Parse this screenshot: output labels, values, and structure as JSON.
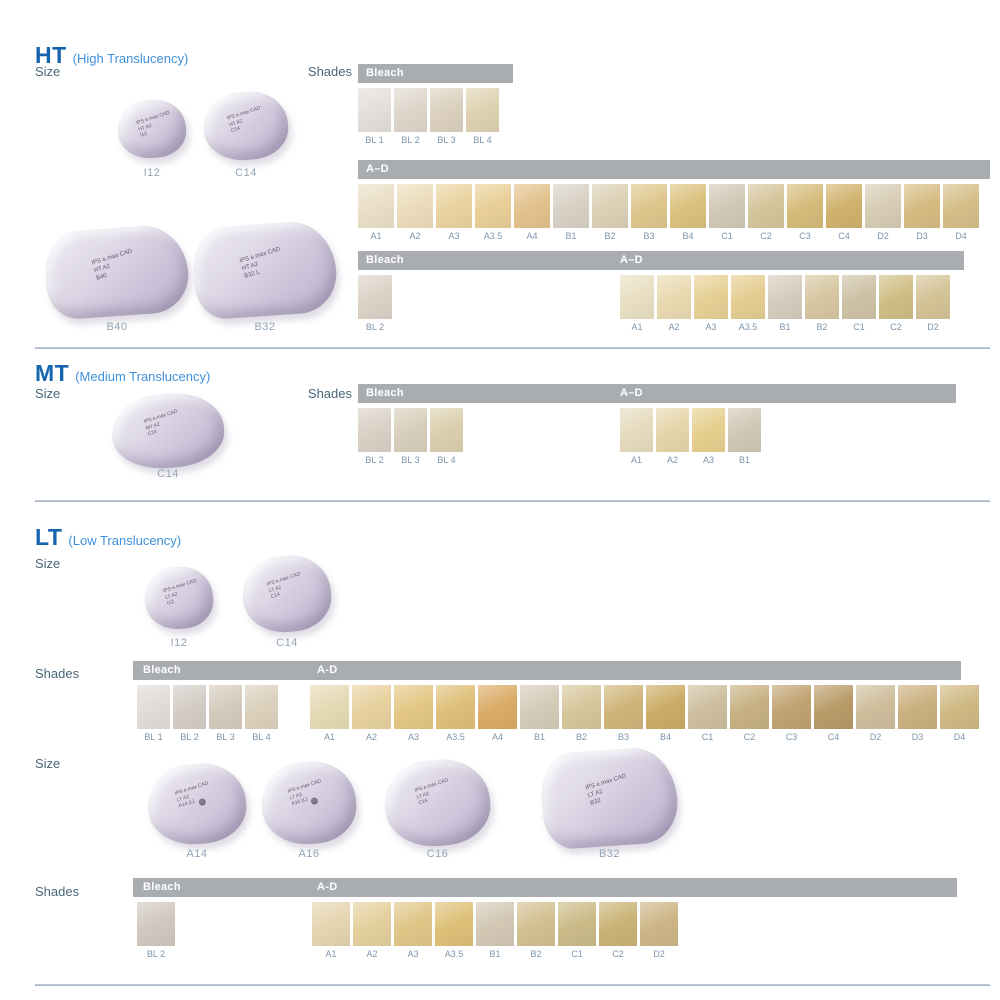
{
  "colors": {
    "header_blue": "#1565AE",
    "subtitle_blue": "#3F90DC",
    "section_label": "#48677A",
    "shade_label": "#7D94AA",
    "bar_gray": "#A9ACB0",
    "bar_text": "#FFFFFF",
    "block_lilac": "#CDC5DA"
  },
  "sections": {
    "ht": {
      "code": "HT",
      "title": "(High Translucency)",
      "size_label": "Size",
      "shades_label": "Shades",
      "blocks": [
        {
          "label": "I12",
          "face": "IPS e.max CAD\nHT A2\nI12"
        },
        {
          "label": "C14",
          "face": "IPS e.max CAD\nHT A2\nC14"
        },
        {
          "label": "B40",
          "face": "IPS e.max CAD\nHT A2\nB40"
        },
        {
          "label": "B32",
          "face": "IPS e.max CAD\nHT A2\nB32 L"
        }
      ],
      "rows": {
        "bleach": {
          "header": "Bleach",
          "swatches": [
            {
              "label": "BL 1",
              "color": "#E4DFDA"
            },
            {
              "label": "BL 2",
              "color": "#DED6CB"
            },
            {
              "label": "BL 3",
              "color": "#DCD1BF"
            },
            {
              "label": "BL 4",
              "color": "#DFD2B2"
            }
          ]
        },
        "ad": {
          "header": "A–D",
          "swatches": [
            {
              "label": "A1",
              "color": "#EADFC6"
            },
            {
              "label": "A2",
              "color": "#EBDDBB"
            },
            {
              "label": "A3",
              "color": "#EAD3A0"
            },
            {
              "label": "A3.5",
              "color": "#E9CF97"
            },
            {
              "label": "A4",
              "color": "#E3C28C"
            },
            {
              "label": "B1",
              "color": "#D8D1C5"
            },
            {
              "label": "B2",
              "color": "#DCD0B5"
            },
            {
              "label": "B3",
              "color": "#DFC68C"
            },
            {
              "label": "B4",
              "color": "#DCC17E"
            },
            {
              "label": "C1",
              "color": "#D2C8B6"
            },
            {
              "label": "C2",
              "color": "#D5C59B"
            },
            {
              "label": "C3",
              "color": "#D6BB7B"
            },
            {
              "label": "C4",
              "color": "#D1B26D"
            },
            {
              "label": "D2",
              "color": "#D7CCB4"
            },
            {
              "label": "D3",
              "color": "#D6BC82"
            },
            {
              "label": "D4",
              "color": "#D5BE88"
            }
          ]
        },
        "combo": {
          "header_left": "Bleach",
          "header_right": "A–D",
          "left": [
            {
              "label": "BL 2",
              "color": "#DCD3C7"
            }
          ],
          "right": [
            {
              "label": "A1",
              "color": "#E9DFC3"
            },
            {
              "label": "A2",
              "color": "#E9DAB1"
            },
            {
              "label": "A3",
              "color": "#E6D095"
            },
            {
              "label": "A3.5",
              "color": "#E5CD92"
            },
            {
              "label": "B1",
              "color": "#D5CCBD"
            },
            {
              "label": "B2",
              "color": "#D6C7A0"
            },
            {
              "label": "C1",
              "color": "#CEC2A6"
            },
            {
              "label": "C2",
              "color": "#CFBE84"
            },
            {
              "label": "D2",
              "color": "#D4C396"
            }
          ]
        }
      }
    },
    "mt": {
      "code": "MT",
      "title": "(Medium Translucency)",
      "size_label": "Size",
      "shades_label": "Shades",
      "blocks": [
        {
          "label": "C14",
          "face": "IPS e.max CAD\nMT A2\nC14"
        }
      ],
      "rows": {
        "combo": {
          "header_left": "Bleach",
          "header_right": "A–D",
          "left": [
            {
              "label": "BL 2",
              "color": "#DAD1C6"
            },
            {
              "label": "BL 3",
              "color": "#D8CFBB"
            },
            {
              "label": "BL 4",
              "color": "#DBD0AE"
            }
          ],
          "right": [
            {
              "label": "A1",
              "color": "#E6DBBE"
            },
            {
              "label": "A2",
              "color": "#E5D6AA"
            },
            {
              "label": "A3",
              "color": "#E6D08F"
            },
            {
              "label": "B1",
              "color": "#D1C7B6"
            }
          ]
        }
      }
    },
    "lt": {
      "code": "LT",
      "title": "(Low Translucency)",
      "size_label": "Size",
      "size_label_2": "Size",
      "shades_label": "Shades",
      "shades_label_2": "Shades",
      "blocks": [
        {
          "label": "I12",
          "face": "IPS e.max CAD\nLT A2\nI12"
        },
        {
          "label": "C14",
          "face": "IPS e.max CAD\nLT A2\nC14"
        },
        {
          "label": "A14",
          "face": "IPS e.max CAD\nLT A2\nA14 (L)"
        },
        {
          "label": "A16",
          "face": "IPS e.max CAD\nLT A2\nA16 (L)"
        },
        {
          "label": "C16",
          "face": "IPS e.max CAD\nLT A2\nC16"
        },
        {
          "label": "B32",
          "face": "IPS e.max CAD\nLT A2\nB32"
        }
      ],
      "rows": {
        "combo1": {
          "header_left": "Bleach",
          "header_right": "A-D",
          "left": [
            {
              "label": "BL 1",
              "color": "#E0DCD7"
            },
            {
              "label": "BL 2",
              "color": "#D4CDC6"
            },
            {
              "label": "BL 3",
              "color": "#D5CBBD"
            },
            {
              "label": "BL 4",
              "color": "#DBD1BC"
            }
          ],
          "right": [
            {
              "label": "A1",
              "color": "#E6D9B5"
            },
            {
              "label": "A2",
              "color": "#E7D19F"
            },
            {
              "label": "A3",
              "color": "#E4C786"
            },
            {
              "label": "A3.5",
              "color": "#DFBF78"
            },
            {
              "label": "A4",
              "color": "#DAAB66"
            },
            {
              "label": "B1",
              "color": "#D4CBB8"
            },
            {
              "label": "B2",
              "color": "#D6C69B"
            },
            {
              "label": "B3",
              "color": "#D0B57A"
            },
            {
              "label": "B4",
              "color": "#CCAC66"
            },
            {
              "label": "C1",
              "color": "#CDBF9F"
            },
            {
              "label": "C2",
              "color": "#C7B183"
            },
            {
              "label": "C3",
              "color": "#C1A271"
            },
            {
              "label": "C4",
              "color": "#B99B68"
            },
            {
              "label": "D2",
              "color": "#CFBE9C"
            },
            {
              "label": "D3",
              "color": "#CBB07F"
            },
            {
              "label": "D4",
              "color": "#CFB983"
            }
          ]
        },
        "combo2": {
          "header_left": "Bleach",
          "header_right": "A-D",
          "left": [
            {
              "label": "BL 2",
              "color": "#D1C8BF"
            }
          ],
          "right": [
            {
              "label": "A1",
              "color": "#E5D5B0"
            },
            {
              "label": "A2",
              "color": "#E4D09D"
            },
            {
              "label": "A3",
              "color": "#E0C687"
            },
            {
              "label": "A3.5",
              "color": "#DEC078"
            },
            {
              "label": "B1",
              "color": "#D2C8B4"
            },
            {
              "label": "B2",
              "color": "#D3C091"
            },
            {
              "label": "C1",
              "color": "#CBBB89"
            },
            {
              "label": "C2",
              "color": "#CAB375"
            },
            {
              "label": "D2",
              "color": "#CDB586"
            }
          ]
        }
      }
    }
  }
}
